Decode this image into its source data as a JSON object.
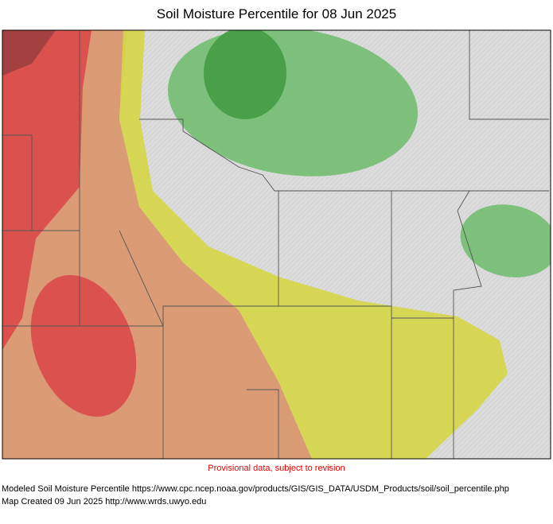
{
  "header": {
    "title": "Soil Moisture Percentile for 08 Jun 2025"
  },
  "map": {
    "notice": "Provisional data, subject to revision"
  },
  "footer": {
    "lines": [
      "Modeled Soil Moisture Percentile https://www.cpc.ncep.noaa.gov/products/GIS/GIS_DATA/USDM_Products/soil/soil_percentile.php",
      "Map Created 09 Jun 2025 http://www.wrds.uwyo.edu"
    ]
  }
}
